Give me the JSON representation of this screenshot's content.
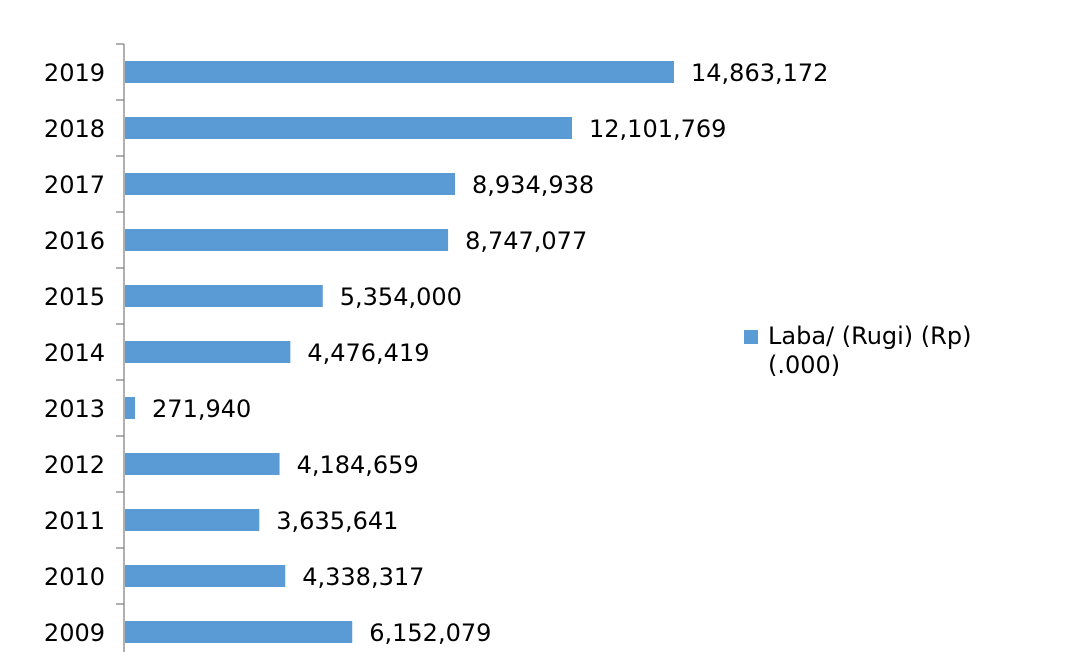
{
  "chart_data": {
    "type": "bar",
    "orientation": "horizontal",
    "categories": [
      "2019",
      "2018",
      "2017",
      "2016",
      "2015",
      "2014",
      "2013",
      "2012",
      "2011",
      "2010",
      "2009"
    ],
    "series": [
      {
        "name": "Laba/ (Rugi) (Rp) (.000)",
        "values": [
          14863172,
          12101769,
          8934938,
          8747077,
          5354000,
          4476419,
          271940,
          4184659,
          3635641,
          4338317,
          6152079
        ],
        "labels": [
          "14,863,172",
          "12,101,769",
          "8,934,938",
          "8,747,077",
          "5,354,000",
          "4,476,419",
          "271,940",
          "4,184,659",
          "3,635,641",
          "4,338,317",
          "6,152,079"
        ]
      }
    ],
    "xlim": [
      0,
      25000000
    ],
    "grid": false,
    "legend": "right",
    "color": "#5B9BD5"
  }
}
